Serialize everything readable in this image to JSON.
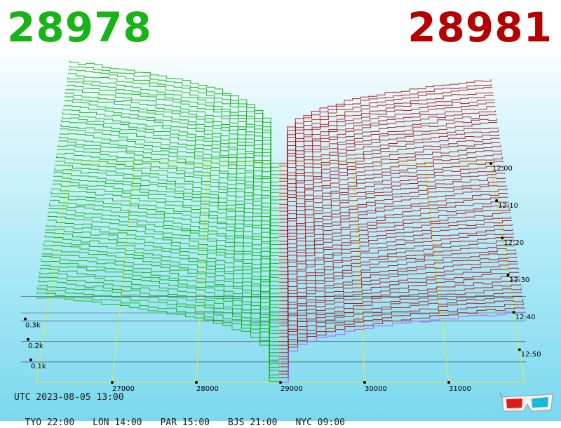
{
  "header": {
    "bid_price": "28978",
    "ask_price": "28981"
  },
  "colors": {
    "bid": "#00b400",
    "ask": "#b00000",
    "bid_text": "#17b317",
    "ask_text": "#b30000",
    "grid": "#e8e840",
    "last_line": "#c040ff"
  },
  "footer": {
    "utc": "UTC 2023-08-05 13:00",
    "zones": [
      "TYO 22:00",
      "LON 14:00",
      "PAR 15:00",
      "BJS 21:00",
      "NYC 09:00"
    ]
  },
  "icons": {
    "anaglyph": "3d-glasses-icon"
  },
  "chart_data": {
    "type": "area",
    "description_type": "3d-market-depth",
    "x_ticks": [
      "27000",
      "28000",
      "29000",
      "30000",
      "31000"
    ],
    "x_tick_values": [
      27000,
      28000,
      29000,
      30000,
      31000
    ],
    "xlim": [
      26100,
      31900
    ],
    "time_ticks": [
      "12:00",
      "12:10",
      "12:20",
      "12:30",
      "12:40",
      "12:50"
    ],
    "depth_ticks": [
      "0.1k",
      "0.2k",
      "0.3k"
    ],
    "depth_tick_values": [
      100,
      200,
      300
    ],
    "snapshots": 60,
    "series": [
      {
        "name": "bids",
        "side": "bid",
        "mid": 28978,
        "max_depth": 560
      },
      {
        "name": "asks",
        "side": "ask",
        "mid": 28981,
        "max_depth": 460
      }
    ]
  }
}
